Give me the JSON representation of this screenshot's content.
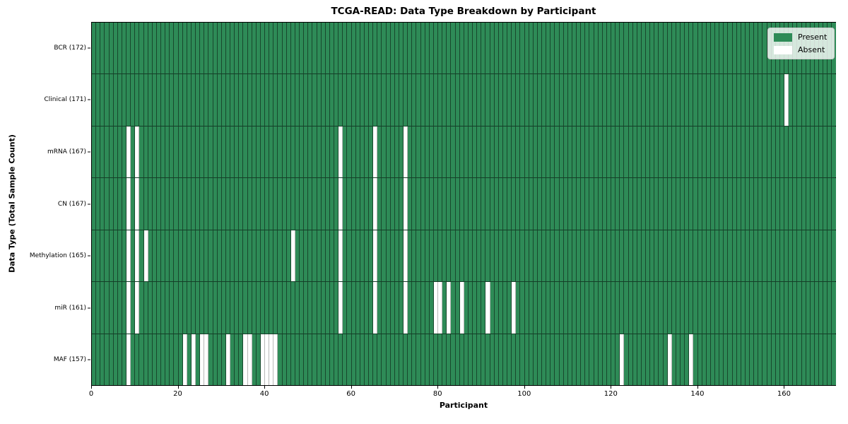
{
  "chart_data": {
    "type": "heatmap",
    "title": "TCGA-READ: Data Type Breakdown by Participant",
    "xlabel": "Participant",
    "ylabel": "Data Type (Total Sample Count)",
    "n_participants": 172,
    "xlim": [
      0,
      172
    ],
    "x_ticks": [
      0,
      20,
      40,
      60,
      80,
      100,
      120,
      140,
      160
    ],
    "grid": "cell-borders",
    "colors": {
      "present": "#2e8b57",
      "absent": "#ffffff"
    },
    "legend": {
      "position": "upper right",
      "entries": [
        {
          "label": "Present",
          "color": "#2e8b57"
        },
        {
          "label": "Absent",
          "color": "#ffffff"
        }
      ]
    },
    "rows": [
      {
        "label": "BCR (172)",
        "total": 172,
        "absent": []
      },
      {
        "label": "Clinical (171)",
        "total": 171,
        "absent": [
          160
        ]
      },
      {
        "label": "mRNA (167)",
        "total": 167,
        "absent": [
          8,
          10,
          57,
          65,
          72
        ]
      },
      {
        "label": "CN (167)",
        "total": 167,
        "absent": [
          8,
          10,
          57,
          65,
          72
        ]
      },
      {
        "label": "Methylation (165)",
        "total": 165,
        "absent": [
          8,
          10,
          12,
          46,
          57,
          65,
          72
        ]
      },
      {
        "label": "miR (161)",
        "total": 161,
        "absent": [
          8,
          10,
          57,
          65,
          72,
          79,
          80,
          82,
          85,
          91,
          97
        ]
      },
      {
        "label": "MAF (157)",
        "total": 157,
        "absent": [
          8,
          21,
          23,
          25,
          26,
          31,
          35,
          36,
          39,
          40,
          41,
          42,
          122,
          133,
          138
        ]
      }
    ]
  }
}
